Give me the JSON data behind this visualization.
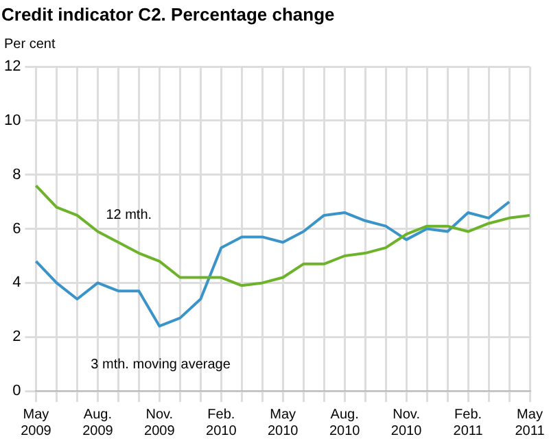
{
  "chart_data": {
    "type": "line",
    "title": "Credit indicator C2. Percentage change",
    "ylabel": "Per cent",
    "categories": [
      "May 2009",
      null,
      null,
      "Aug. 2009",
      null,
      null,
      "Nov. 2009",
      null,
      null,
      "Feb. 2010",
      null,
      null,
      "May 2010",
      null,
      null,
      "Aug. 2010",
      null,
      null,
      "Nov. 2010",
      null,
      null,
      "Feb. 2011",
      null,
      null,
      "May 2011"
    ],
    "series": [
      {
        "name": "12 mth.",
        "color": "#6cb32a",
        "values": [
          7.6,
          6.8,
          6.5,
          5.9,
          5.5,
          5.1,
          4.8,
          4.2,
          4.2,
          4.2,
          3.9,
          4.0,
          4.2,
          4.7,
          4.7,
          5.0,
          5.1,
          5.3,
          5.8,
          6.1,
          6.1,
          5.9,
          6.2,
          6.4,
          6.5
        ]
      },
      {
        "name": "3 mth. moving average",
        "color": "#3a94c9",
        "values": [
          4.8,
          4.0,
          3.4,
          4.0,
          3.7,
          3.7,
          2.4,
          2.7,
          3.4,
          5.3,
          5.7,
          5.7,
          5.5,
          5.9,
          6.5,
          6.6,
          6.3,
          6.1,
          5.6,
          6.0,
          5.9,
          6.6,
          6.4,
          7.0,
          null
        ]
      }
    ],
    "ylim": [
      0,
      12
    ],
    "yticks": [
      0,
      2,
      4,
      6,
      8,
      10,
      12
    ],
    "grid": true,
    "legend": false,
    "marker": "none",
    "line_style": "solid"
  }
}
